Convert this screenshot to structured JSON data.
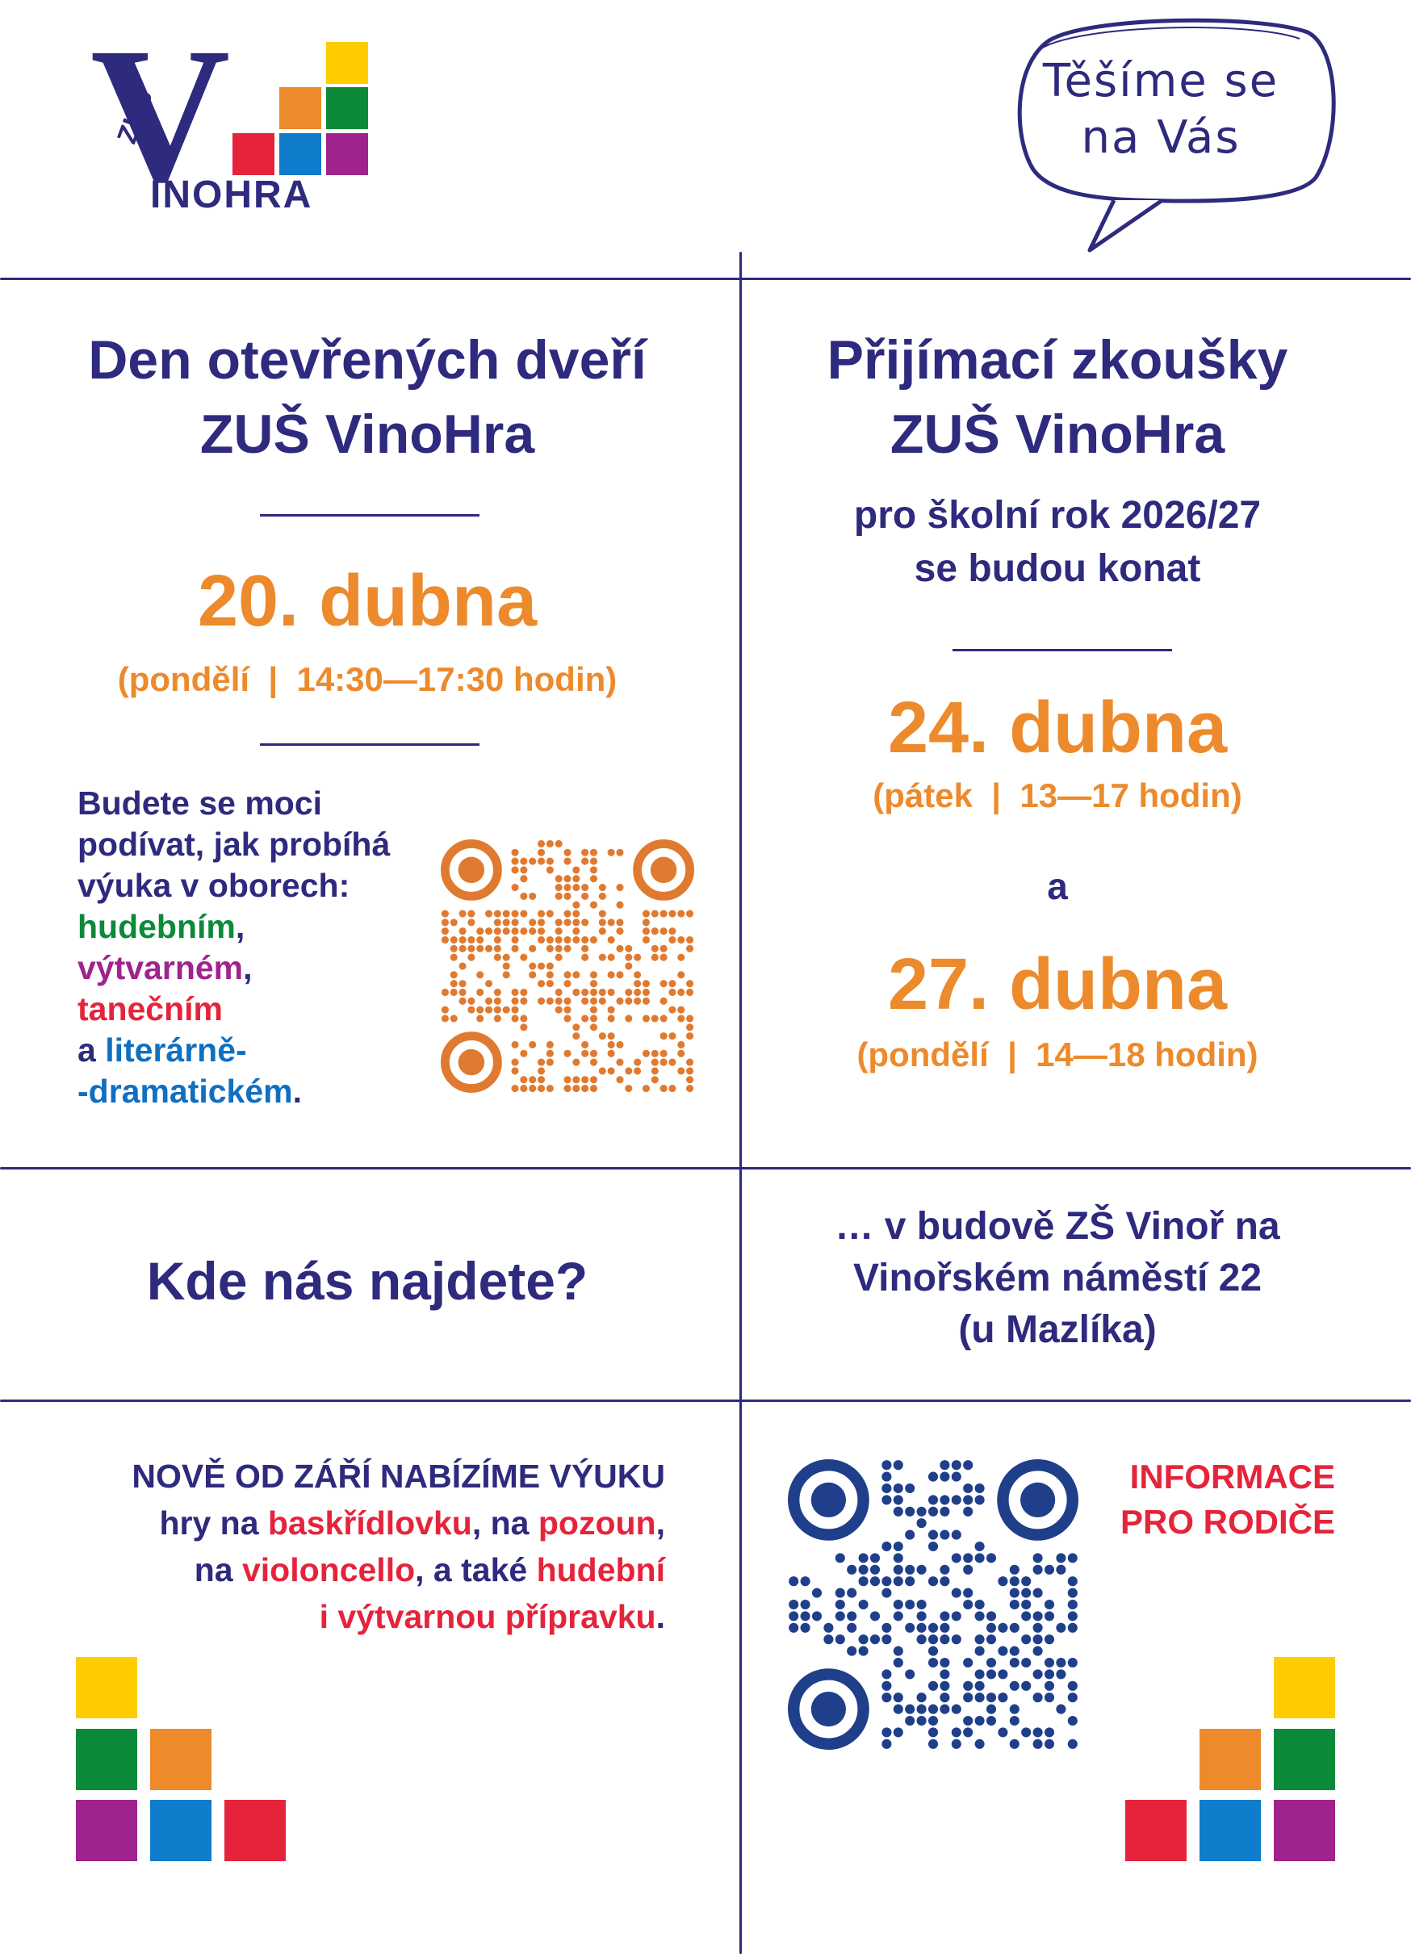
{
  "logo": {
    "letter": "V",
    "word": "INOHRA",
    "school": "ZUŠ"
  },
  "bubble": {
    "line1": "Těšíme se",
    "line2": "na Vás"
  },
  "open_day": {
    "title_line1": "Den otevřených dveří",
    "title_line2": "ZUŠ VinoHra",
    "date": "20. dubna",
    "note": "(pondělí  |  14:30—17:30 hodin)",
    "desc_line1": "Budete se moci",
    "desc_line2": "podívat, jak probíhá",
    "desc_line3": "výuka v oborech:",
    "field_music": "hudebním",
    "field_art": "výtvarném",
    "field_dance": "tanečním",
    "conj": "a ",
    "field_drama_1": "literárně-",
    "field_drama_2": "-dramatickém",
    "comma": ",",
    "period": "."
  },
  "exams": {
    "title_line1": "Přijímací zkoušky",
    "title_line2": "ZUŠ VinoHra",
    "sub_line1": "pro školní rok 2026/27",
    "sub_line2": "se budou konat",
    "date1": "24. dubna",
    "note1": "(pátek  |  13—17 hodin)",
    "and": "a",
    "date2": "27. dubna",
    "note2": "(pondělí  |  14—18 hodin)"
  },
  "location": {
    "question": "Kde nás najdete?",
    "line1": "… v budově ZŠ Vinoř na",
    "line2": "Vinořském náměstí 22",
    "line3": "(u Mazlíka)"
  },
  "news": {
    "line1": "NOVĚ OD ZÁŘÍ NABÍZÍME VÝUKU",
    "l2a": "hry na ",
    "l2b": "baskřídlovku",
    "l2c": ", na ",
    "l2d": "pozoun",
    "l2e": ",",
    "l3a": "na ",
    "l3b": "violoncello",
    "l3c": ", a také ",
    "l3d": "hudební",
    "l4": "i výtvarnou přípravku",
    "l4end": "."
  },
  "parents": {
    "line1": "INFORMACE",
    "line2": "PRO RODIČE"
  },
  "colors": {
    "navy": "#2e2a7d",
    "orange": "#ec8a2c",
    "yellow": "#ffcc00",
    "green": "#0b8a3a",
    "purple": "#a0238d",
    "blue": "#0f7ccc",
    "red": "#e5243b"
  }
}
